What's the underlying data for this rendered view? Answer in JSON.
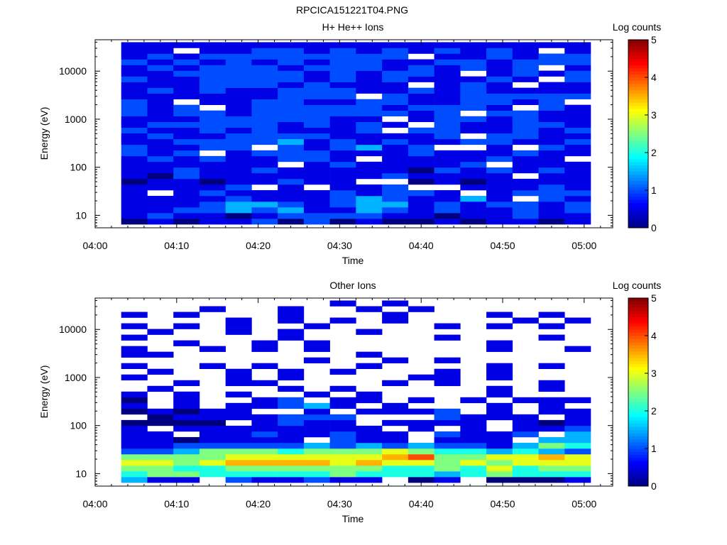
{
  "figure": {
    "title": "RPCICA151221T04.PNG"
  },
  "colors": {
    "colormap": [
      "#00007f",
      "#0000ff",
      "#007fff",
      "#00ffff",
      "#7fff7f",
      "#ffff00",
      "#ff7f00",
      "#ff0000",
      "#7f0000"
    ],
    "missing": "#ffffff"
  },
  "chart_data": [
    {
      "type": "heatmap",
      "title": "H+ He++ Ions",
      "xlabel": "Time",
      "ylabel": "Energy (eV)",
      "x_ticks": [
        "04:00",
        "04:10",
        "04:20",
        "04:30",
        "04:40",
        "04:50",
        "05:00"
      ],
      "x_tick_minutes": [
        0,
        10,
        20,
        30,
        40,
        50,
        60
      ],
      "xlim_minutes": [
        0,
        63.5
      ],
      "y_scale": "log",
      "ylim": [
        5.5,
        45000
      ],
      "y_ticks": [
        "10",
        "100",
        "1000",
        "10000"
      ],
      "y_tick_values": [
        10,
        100,
        1000,
        10000
      ],
      "colorbar": {
        "label": "Log counts",
        "range": [
          0,
          5
        ],
        "ticks": [
          "0",
          "1",
          "2",
          "3",
          "4",
          "5"
        ]
      },
      "time_bins": {
        "start_minute": 3.2,
        "step_minutes": 3.2,
        "count": 18
      },
      "energy_bins": {
        "min_eV": 6.5,
        "max_eV": 40000,
        "count": 32
      },
      "levels_grid_note": "rows = energy bins (low to high), one character per time bin; '.' = no data, digits 0-9 = log counts x2",
      "levels_grid": [
        "010112020100101101",
        "121101222211011211",
        "112232311321211212",
        "111233212331212212",
        "111121112321131.21",
        "1.12111121221.1222",
        "11112.1.112..11121",
        "011011211..0101111",
        "102111111121111.11",
        "112112111110212121",
        "111111.1211112.111",
        "121211221.1111211.",
        "212.12221112111211",
        "21122.212312..1.21",
        "112222312121122112",
        "1211222211112.2211",
        "2112121112.2211212",
        "12222212121.211221",
        "1112222211.1221211",
        "2122122222212.2211",
        "212.12222212221.21",
        "21.11221122112212.",
        "111111222.21122222",
        "121211222112121111",
        "11122212111.121.11",
        "2112222121211121.2",
        "1122222121221.1212",
        "1212221222121212.1",
        "212121212211221222",
        "12122222222.112122",
        "11.1122121212121.1",
        "111111111111111111"
      ]
    },
    {
      "type": "heatmap",
      "title": "Other Ions",
      "xlabel": "Time",
      "ylabel": "Energy (eV)",
      "x_ticks": [
        "04:00",
        "04:10",
        "04:20",
        "04:30",
        "04:40",
        "04:50",
        "05:00"
      ],
      "x_tick_minutes": [
        0,
        10,
        20,
        30,
        40,
        50,
        60
      ],
      "xlim_minutes": [
        0,
        63.5
      ],
      "y_scale": "log",
      "ylim": [
        5.5,
        45000
      ],
      "y_ticks": [
        "10",
        "100",
        "1000",
        "10000"
      ],
      "y_tick_values": [
        10,
        100,
        1000,
        10000
      ],
      "colorbar": {
        "label": "Log counts",
        "range": [
          0,
          5
        ],
        "ticks": [
          "0",
          "1",
          "2",
          "3",
          "4",
          "5"
        ]
      },
      "time_bins": {
        "start_minute": 3.2,
        "step_minutes": 3.2,
        "count": 18
      },
      "energy_bins": {
        "min_eV": 6.5,
        "max_eV": 40000,
        "count": 32
      },
      "levels_grid_note": "rows = energy bins (low to high), one character per time bin; '.' = no data, digits 0-9 = log counts x2",
      "levels_grid": [
        "311.211211.01.0001",
        "455444445444345444",
        "554455555544546455",
        "665677776766565666",
        "555566666678556676",
        "223555455565443432",
        "112222232323221354",
        "1101111.211.111.33",
        "11.11211211.2112.3",
        "1.11111111.1.1.112",
        "0000.1211.1111.101",
        ".01111222...2111.1",
        "01011..1.1112.1.11",
        "1.1.11231.1...1.1.",
        "0.1..12.11.1.1.111",
        "1.1.1..1.1....1...",
        ".1....1.1.....1.1.",
        "..1.11....1.1...1.",
        "1...1.1....11.1...",
        ".1..1.1.1...1.1...",
        "1..1.1...1....1.1.",
        ".......1..1.1.....",
        "11.......1........",
        "1..1.1.1......1..1",
        "..1..1.1......1...",
        "1.....1.....1...1.",
        ".1..1.1..1........",
        "1.1.1..1....1.1.1.",
        "....1.1.1.1....1.1",
        "1.1...1...1...1.1.",
        "...1..1..1.1......",
        "........1.1......."
      ]
    }
  ]
}
